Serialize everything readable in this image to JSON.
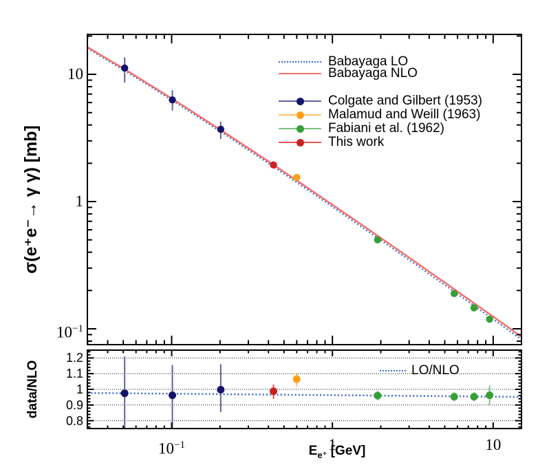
{
  "figure": {
    "background": "#ffffff",
    "frame_color": "#000000",
    "grid_color": "#000000"
  },
  "labels": {
    "y_main": "σ(e⁺e⁻→ γ γ) [mb]",
    "y_ratio": "data/NLO",
    "x_symbol": "E",
    "x_sub": "e⁺",
    "x_rest": " [GeV]"
  },
  "legend": {
    "entries": [
      {
        "label": "Babayaga LO",
        "type": "dotted-line",
        "color": "#3a66cc"
      },
      {
        "label": "Babayaga NLO",
        "type": "solid-line",
        "color": "#f4706b"
      },
      {
        "label": "",
        "type": "spacer",
        "color": ""
      },
      {
        "label": "Colgate and Gilbert (1953)",
        "type": "marker",
        "color": "#14146e",
        "line_color": "#5f5fa3"
      },
      {
        "label": "Malamud and Weill (1963)",
        "type": "marker",
        "color": "#ff9f1a",
        "line_color": "#ffc266"
      },
      {
        "label": "Fabiani et al. (1962)",
        "type": "marker",
        "color": "#36a036",
        "line_color": "#79c279"
      },
      {
        "label": "This work",
        "type": "marker",
        "color": "#c92222",
        "line_color": "#e05555"
      }
    ]
  },
  "chart_data": [
    {
      "type": "line",
      "title": "",
      "xlabel": "E_e+ [GeV]",
      "ylabel": "σ(e⁺e⁻→ γ γ) [mb]",
      "xscale": "log",
      "yscale": "log",
      "xlim": [
        0.0299,
        15.0
      ],
      "ylim": [
        0.0751,
        20.6
      ],
      "grid": false,
      "legend_position": "top-right",
      "x_major_ticks": [
        {
          "value": 0.1,
          "label": {
            "main": "10",
            "exp": "−1"
          }
        },
        {
          "value": 1,
          "label": {
            "main": "1"
          }
        },
        {
          "value": 10,
          "label": {
            "main": "10"
          }
        }
      ],
      "y_major_ticks": [
        {
          "value": 10,
          "label": {
            "main": "10"
          }
        },
        {
          "value": 1,
          "label": {
            "main": "1"
          }
        },
        {
          "value": 0.1,
          "label": {
            "main": "10",
            "exp": "−1"
          }
        }
      ],
      "curves": [
        {
          "name": "Babayaga NLO",
          "style": "solid",
          "color": "#f4706b",
          "width": 2.5,
          "E": [
            0.0299,
            0.04,
            0.05,
            0.063,
            0.08,
            0.1,
            0.126,
            0.158,
            0.2,
            0.25,
            0.32,
            0.4,
            0.5,
            0.63,
            0.8,
            1.0,
            1.26,
            1.58,
            2.0,
            2.5,
            3.2,
            4.0,
            5.0,
            6.3,
            8.0,
            10.0,
            12.6,
            15.0
          ],
          "sigma": [
            16.36,
            13.17,
            11.12,
            9.3,
            7.71,
            6.46,
            5.37,
            4.46,
            3.68,
            3.06,
            2.49,
            2.07,
            1.71,
            1.405,
            1.146,
            0.945,
            0.774,
            0.636,
            0.518,
            0.426,
            0.343,
            0.281,
            0.231,
            0.188,
            0.152,
            0.1245,
            0.1012,
            0.0865
          ]
        },
        {
          "name": "Babayaga LO",
          "style": "dotted",
          "color": "#3a66cc",
          "width": 2.2,
          "derived_from": "Babayaga NLO times LO/NLO ratio line"
        }
      ],
      "points": [
        {
          "name": "Colgate and Gilbert (1953)",
          "color": "#14146e",
          "bar_color": "#5f5fa3",
          "E": [
            0.051,
            0.101,
            0.202
          ],
          "sigma": [
            11.2,
            6.3,
            3.7
          ],
          "sig_err_hi": [
            2.4,
            1.2,
            0.55
          ],
          "sig_err_lo": [
            2.6,
            1.1,
            0.6
          ]
        },
        {
          "name": "Malamud and Weill (1963)",
          "color": "#ff9f1a",
          "bar_color": "#ffc266",
          "E": [
            0.6
          ],
          "sigma": [
            1.55
          ],
          "sig_err_hi": [
            0.06
          ],
          "sig_err_lo": [
            0.06
          ]
        },
        {
          "name": "Fabiani et al. (1962)",
          "color": "#36a036",
          "bar_color": "#79c279",
          "E": [
            1.91,
            5.72,
            7.6,
            9.5
          ],
          "sigma": [
            0.5,
            0.189,
            0.146,
            0.119
          ],
          "sig_err_hi": [
            0.015,
            0.006,
            0.005,
            0.004
          ],
          "sig_err_lo": [
            0.015,
            0.006,
            0.005,
            0.004
          ]
        },
        {
          "name": "This work",
          "color": "#c92222",
          "bar_color": "#e05555",
          "E": [
            0.43
          ],
          "sigma": [
            1.94
          ],
          "sig_err_hi": [
            0.05
          ],
          "sig_err_lo": [
            0.05
          ]
        }
      ]
    },
    {
      "type": "scatter",
      "ylabel": "data/NLO",
      "xlabel": "E_e+ [GeV]",
      "xscale": "log",
      "xlim": [
        0.0299,
        15.0
      ],
      "ylim": [
        0.75,
        1.25
      ],
      "grid_values": [
        0.8,
        0.9,
        1.0,
        1.1,
        1.2
      ],
      "y_major_ticks": [
        {
          "value": 1.2,
          "label": {
            "main": "1.2"
          }
        },
        {
          "value": 1.1,
          "label": {
            "main": "1.1"
          }
        },
        {
          "value": 1.0,
          "label": {
            "main": "1"
          }
        },
        {
          "value": 0.9,
          "label": {
            "main": "0.9"
          }
        },
        {
          "value": 0.8,
          "label": {
            "main": "0.8"
          }
        }
      ],
      "y_minor_step": 0.02,
      "lo_nlo_line": {
        "label": "LO/NLO",
        "color": "#3a66cc",
        "width": 2.5,
        "E": [
          0.0299,
          15.0
        ],
        "ratio": [
          0.977,
          0.952
        ]
      },
      "points": [
        {
          "name": "Colgate and Gilbert (1953)",
          "color": "#14146e",
          "bar_color": "#5f5fa3",
          "E": [
            0.051,
            0.101,
            0.202
          ],
          "ratio": [
            0.975,
            0.962,
            0.998
          ],
          "r_err_hi": [
            0.235,
            0.193,
            0.162
          ],
          "r_err_lo": [
            0.5,
            0.5,
            0.143
          ]
        },
        {
          "name": "Malamud and Weill (1963)",
          "color": "#ff9f1a",
          "bar_color": "#ffc266",
          "E": [
            0.6
          ],
          "ratio": [
            1.065
          ],
          "r_err_hi": [
            0.04
          ],
          "r_err_lo": [
            0.047
          ]
        },
        {
          "name": "Fabiani et al. (1962)",
          "color": "#36a036",
          "bar_color": "#79c279",
          "E": [
            1.91,
            5.72,
            7.6,
            9.5
          ],
          "ratio": [
            0.96,
            0.953,
            0.953,
            0.962
          ],
          "r_err_hi": [
            0.03,
            0.028,
            0.028,
            0.062
          ],
          "r_err_lo": [
            0.03,
            0.028,
            0.028,
            0.062
          ]
        },
        {
          "name": "This work",
          "color": "#c92222",
          "bar_color": "#e05555",
          "E": [
            0.43
          ],
          "ratio": [
            0.988
          ],
          "r_err_hi": [
            0.043
          ],
          "r_err_lo": [
            0.049
          ]
        }
      ]
    }
  ]
}
